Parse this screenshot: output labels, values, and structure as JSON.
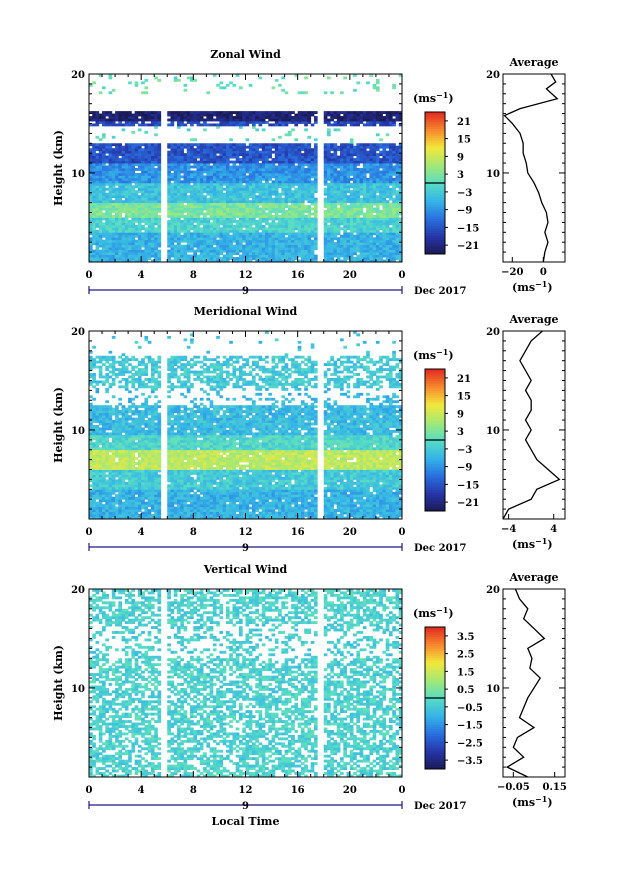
{
  "chart_data": [
    {
      "type": "heatmap",
      "title": "Zonal Wind",
      "xlabel": "",
      "ylabel": "Height (km)",
      "xlim": [
        0,
        24
      ],
      "ylim": [
        1,
        20
      ],
      "x_ticks": [
        "0",
        "4",
        "8",
        "12",
        "16",
        "20",
        "0"
      ],
      "y_ticks": [
        "10",
        "20"
      ],
      "date_tick": "9",
      "date_label": "Dec 2017",
      "colorbar": {
        "unit": "(ms",
        "unit_exp": "−1",
        "ticks": [
          "21",
          "15",
          "9",
          "3",
          "−3",
          "−9",
          "−15",
          "−21"
        ],
        "range": [
          -24,
          24
        ]
      },
      "data_gaps_local_time": [
        [
          5.6,
          6.0
        ],
        [
          17.5,
          17.9
        ]
      ],
      "layers": [
        {
          "z_from": 18.0,
          "z_to": 20.0,
          "value": 1,
          "coverage": 0.1
        },
        {
          "z_from": 15.3,
          "z_to": 16.3,
          "value": -22,
          "coverage": 0.95
        },
        {
          "z_from": 14.8,
          "z_to": 15.3,
          "value": -16,
          "coverage": 0.8
        },
        {
          "z_from": 13.0,
          "z_to": 14.8,
          "value": 0,
          "coverage": 0.05
        },
        {
          "z_from": 11.0,
          "z_to": 13.0,
          "value": -15,
          "coverage": 0.95
        },
        {
          "z_from": 9.0,
          "z_to": 11.0,
          "value": -9,
          "coverage": 0.95
        },
        {
          "z_from": 7.0,
          "z_to": 9.0,
          "value": -4,
          "coverage": 0.95
        },
        {
          "z_from": 5.5,
          "z_to": 7.0,
          "value": 3,
          "coverage": 0.95
        },
        {
          "z_from": 4.0,
          "z_to": 5.5,
          "value": -2,
          "coverage": 0.95
        },
        {
          "z_from": 1.0,
          "z_to": 4.0,
          "value": -6,
          "coverage": 0.95
        }
      ],
      "average_profile": {
        "title": "Average",
        "xlabel": "(ms",
        "xlabel_exp": "−1",
        "x_ticks": [
          "−20",
          "0"
        ],
        "xlim": [
          -26,
          14
        ],
        "y_ticks": [
          "10",
          "20"
        ],
        "ylim": [
          1,
          20
        ],
        "z": [
          1,
          2,
          3,
          4,
          5,
          6,
          7,
          8,
          9,
          10,
          11,
          12,
          13,
          14,
          15,
          15.8,
          16.5,
          17.5,
          18.5,
          19.2,
          20
        ],
        "u": [
          0,
          1,
          3,
          1,
          3,
          2,
          -1,
          -3,
          -6,
          -10,
          -11,
          -13,
          -13,
          -15,
          -20,
          -25,
          -15,
          9,
          2,
          8,
          5
        ]
      }
    },
    {
      "type": "heatmap",
      "title": "Meridional Wind",
      "xlabel": "",
      "ylabel": "Height (km)",
      "xlim": [
        0,
        24
      ],
      "ylim": [
        1,
        20
      ],
      "x_ticks": [
        "0",
        "4",
        "8",
        "12",
        "16",
        "20",
        "0"
      ],
      "y_ticks": [
        "10",
        "20"
      ],
      "date_tick": "9",
      "date_label": "Dec 2017",
      "colorbar": {
        "unit": "(ms",
        "unit_exp": "−1",
        "ticks": [
          "21",
          "15",
          "9",
          "3",
          "−3",
          "−9",
          "−15",
          "−21"
        ],
        "range": [
          -24,
          24
        ]
      },
      "data_gaps_local_time": [
        [
          5.6,
          6.0
        ],
        [
          17.5,
          17.9
        ]
      ],
      "layers": [
        {
          "z_from": 17.5,
          "z_to": 20.0,
          "value": -4,
          "coverage": 0.05
        },
        {
          "z_from": 14.3,
          "z_to": 17.5,
          "value": -3,
          "coverage": 0.6
        },
        {
          "z_from": 12.5,
          "z_to": 14.3,
          "value": -5,
          "coverage": 0.2
        },
        {
          "z_from": 9.5,
          "z_to": 12.5,
          "value": -5,
          "coverage": 0.9
        },
        {
          "z_from": 8.0,
          "z_to": 9.5,
          "value": -1,
          "coverage": 0.95
        },
        {
          "z_from": 6.0,
          "z_to": 8.0,
          "value": 8,
          "coverage": 0.95
        },
        {
          "z_from": 4.0,
          "z_to": 6.0,
          "value": -3,
          "coverage": 0.95
        },
        {
          "z_from": 1.0,
          "z_to": 4.0,
          "value": -6,
          "coverage": 0.95
        }
      ],
      "average_profile": {
        "title": "Average",
        "xlabel": "(ms",
        "xlabel_exp": "−1",
        "x_ticks": [
          "−4",
          "4"
        ],
        "xlim": [
          -5,
          6
        ],
        "y_ticks": [
          "10",
          "20"
        ],
        "ylim": [
          1,
          20
        ],
        "z": [
          1,
          2,
          3,
          4,
          5,
          6,
          7,
          8,
          9,
          10,
          11,
          12,
          13,
          14,
          15,
          16,
          17,
          18,
          19,
          20
        ],
        "u": [
          -5,
          -4,
          0,
          1,
          5,
          3,
          1,
          0,
          -1,
          0,
          -1,
          0,
          0,
          -1,
          0,
          -1,
          -2,
          -1,
          0,
          2
        ]
      }
    },
    {
      "type": "heatmap",
      "title": "Vertical Wind",
      "xlabel": "Local Time",
      "ylabel": "Height (km)",
      "xlim": [
        0,
        24
      ],
      "ylim": [
        1,
        20
      ],
      "x_ticks": [
        "0",
        "4",
        "8",
        "12",
        "16",
        "20",
        "0"
      ],
      "y_ticks": [
        "10",
        "20"
      ],
      "date_tick": "9",
      "date_label": "Dec 2017",
      "colorbar": {
        "unit": "(ms",
        "unit_exp": "−1",
        "ticks": [
          "3.5",
          "2.5",
          "1.5",
          "0.5",
          "−0.5",
          "−1.5",
          "−2.5",
          "−3.5"
        ],
        "range": [
          -4,
          4
        ]
      },
      "data_gaps_local_time": [
        [
          5.6,
          6.0
        ],
        [
          17.5,
          17.9
        ]
      ],
      "layers": [
        {
          "z_from": 16.5,
          "z_to": 20.0,
          "value": -0.3,
          "coverage": 0.6
        },
        {
          "z_from": 13.0,
          "z_to": 16.5,
          "value": -0.4,
          "coverage": 0.3
        },
        {
          "z_from": 1.0,
          "z_to": 13.0,
          "value": -0.3,
          "coverage": 0.6
        }
      ],
      "average_profile": {
        "title": "Average",
        "xlabel": "(ms",
        "xlabel_exp": "−1",
        "x_ticks": [
          "−0.05",
          "0.15"
        ],
        "xlim": [
          -0.1,
          0.2
        ],
        "y_ticks": [
          "10",
          "20"
        ],
        "ylim": [
          1,
          20
        ],
        "z": [
          1,
          2,
          3,
          4,
          5,
          6,
          7,
          8,
          9,
          10,
          11,
          12,
          13,
          14,
          15,
          16,
          17,
          18,
          19,
          20
        ],
        "u": [
          0.02,
          -0.08,
          0.0,
          -0.05,
          -0.03,
          0.05,
          -0.02,
          0.0,
          0.02,
          0.05,
          0.08,
          0.03,
          0.04,
          0.02,
          0.1,
          0.05,
          0.0,
          0.02,
          -0.02,
          -0.04
        ]
      }
    }
  ]
}
